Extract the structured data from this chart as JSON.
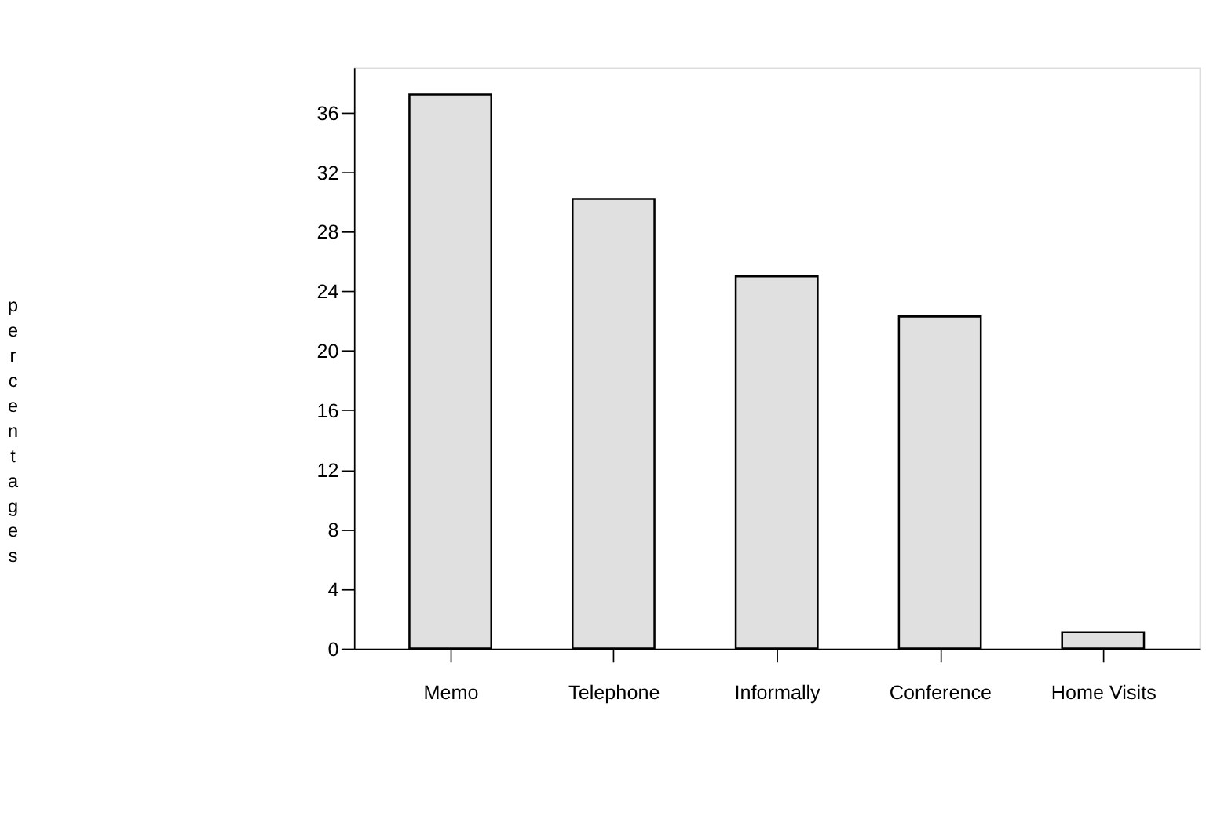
{
  "chart_data": {
    "type": "bar",
    "ylabel": "percentages",
    "categories": [
      "Memo",
      "Telephone",
      "Informally",
      "Conference",
      "Home Visits"
    ],
    "values": [
      37.2,
      30.2,
      25.0,
      22.3,
      1.1
    ],
    "color": "#e0e0e0",
    "ylim": [
      0,
      39
    ],
    "yticks": [
      0,
      4,
      8,
      12,
      16,
      20,
      24,
      28,
      32,
      36
    ],
    "grid": false
  }
}
